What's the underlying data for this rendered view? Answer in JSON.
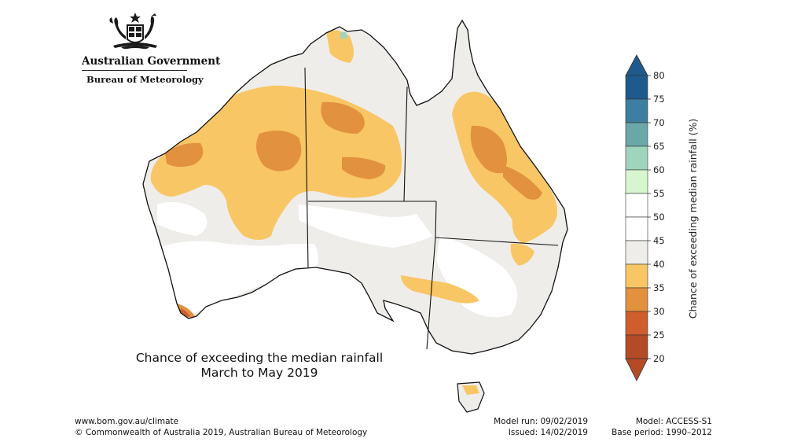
{
  "header": {
    "gov_title": "Australian Government",
    "bom_title": "Bureau of Meteorology"
  },
  "map": {
    "title_line1": "Chance of exceeding the median rainfall",
    "title_line2": "March to May 2019",
    "region": "Australia"
  },
  "legend": {
    "title": "Chance of exceeding median rainfall (%)",
    "ticks": [
      "80",
      "75",
      "70",
      "65",
      "60",
      "55",
      "50",
      "45",
      "40",
      "35",
      "30",
      "25",
      "20"
    ],
    "colors": {
      "above_75": "#1f5a8c",
      "70_75": "#3e7ea0",
      "65_70": "#6aa7a8",
      "60_65": "#9fd4bd",
      "55_60": "#d7f5cf",
      "45_55": "#ffffff",
      "40_45": "#efedea",
      "35_40": "#f8c664",
      "30_35": "#e2913f",
      "25_30": "#cf5d2e",
      "below_25": "#b44a26"
    }
  },
  "footer": {
    "url": "www.bom.gov.au/climate",
    "copyright": "© Commonwealth of Australia 2019, Australian Bureau of Meteorology",
    "model_run": "Model run: 09/02/2019",
    "issued": "Issued: 14/02/2019",
    "model": "Model: ACCESS-S1",
    "base_period": "Base period: 1990–2012"
  }
}
